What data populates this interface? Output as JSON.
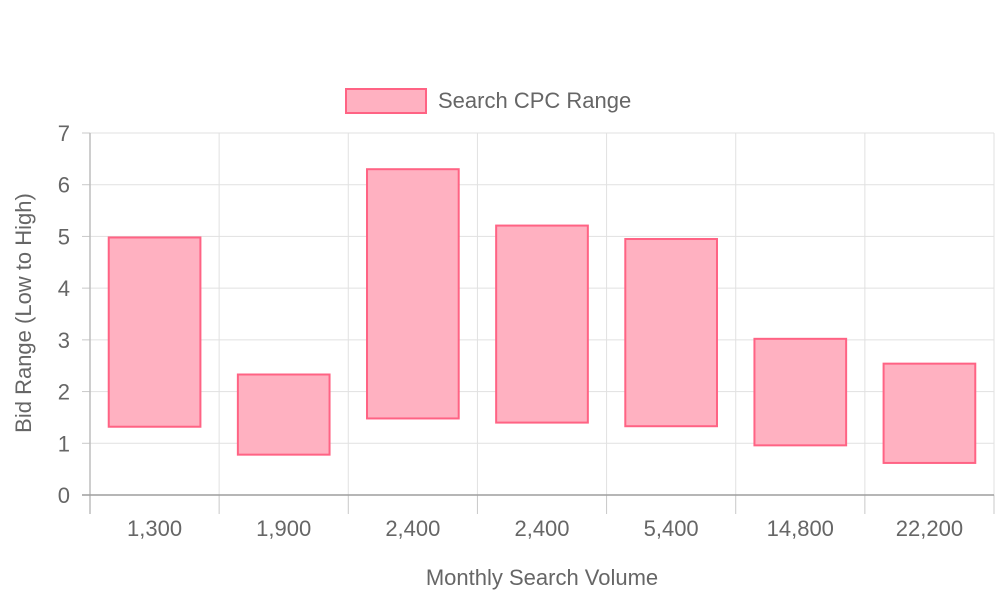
{
  "chart_data": {
    "type": "bar",
    "subtype": "floating-range",
    "categories": [
      "1,300",
      "1,900",
      "2,400",
      "2,400",
      "5,400",
      "14,800",
      "22,200"
    ],
    "series": [
      {
        "name": "Search CPC Range",
        "ranges": [
          [
            1.32,
            4.98
          ],
          [
            0.78,
            2.33
          ],
          [
            1.48,
            6.3
          ],
          [
            1.4,
            5.21
          ],
          [
            1.33,
            4.95
          ],
          [
            0.96,
            3.02
          ],
          [
            0.62,
            2.54
          ]
        ],
        "fill": "#ffb1c1",
        "stroke": "#ff6384"
      }
    ],
    "xlabel": "Monthly Search Volume",
    "ylabel": "Bid Range (Low to High)",
    "ylim": [
      0,
      7
    ],
    "yticks": [
      0,
      1,
      2,
      3,
      4,
      5,
      6,
      7
    ],
    "grid": true,
    "legend": "top-center"
  }
}
